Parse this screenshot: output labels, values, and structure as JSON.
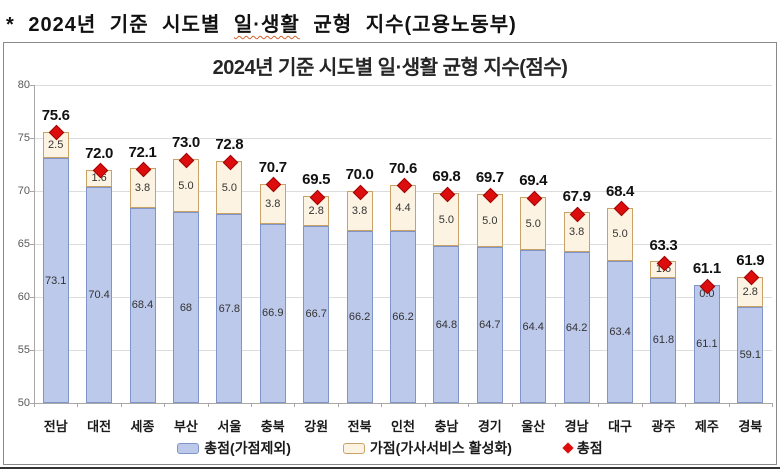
{
  "page_title": {
    "prefix": "* 2024년 기준 시도별 ",
    "highlight": "일·생활",
    "suffix": " 균형 지수(고용노동부)"
  },
  "chart": {
    "title": "2024년 기준 시도별 일·생활 균형 지수(점수)",
    "legend": [
      {
        "label": "총점(가점제외)"
      },
      {
        "label": "가점(가사서비스 활성화)"
      },
      {
        "label": "총점"
      }
    ],
    "colors": {
      "base_fill": "#bcc9ea",
      "base_border": "#8095c7",
      "bonus_fill": "#fdf3e2",
      "bonus_border": "#c9a268",
      "marker": "#dd0d0d",
      "marker_border": "#9c0606",
      "grid": "#dcdcdc",
      "axis": "#a8a8a8"
    }
  },
  "chart_data": {
    "type": "bar",
    "stacked": true,
    "title": "2024년 기준 시도별 일·생활 균형 지수(점수)",
    "categories": [
      "전남",
      "대전",
      "세종",
      "부산",
      "서울",
      "충북",
      "강원",
      "전북",
      "인천",
      "충남",
      "경기",
      "울산",
      "경남",
      "대구",
      "광주",
      "제주",
      "경북"
    ],
    "series": [
      {
        "name": "총점(가점제외)",
        "values": [
          73.1,
          70.4,
          68.4,
          68,
          67.8,
          66.9,
          66.7,
          66.2,
          66.2,
          64.8,
          64.7,
          64.4,
          64.2,
          63.4,
          61.8,
          61.1,
          59.1
        ],
        "labels": [
          "73.1",
          "70.4",
          "68.4",
          "68",
          "67.8",
          "66.9",
          "66.7",
          "66.2",
          "66.2",
          "64.8",
          "64.7",
          "64.4",
          "64.2",
          "63.4",
          "61.8",
          "61.1",
          "59.1"
        ]
      },
      {
        "name": "가점(가사서비스 활성화)",
        "values": [
          2.5,
          1.6,
          3.8,
          5.0,
          5.0,
          3.8,
          2.8,
          3.8,
          4.4,
          5.0,
          5.0,
          5.0,
          3.8,
          5.0,
          1.6,
          0.0,
          2.8
        ],
        "labels": [
          "2.5",
          "1.6",
          "3.8",
          "5.0",
          "5.0",
          "3.8",
          "2.8",
          "3.8",
          "4.4",
          "5.0",
          "5.0",
          "5.0",
          "3.8",
          "5.0",
          "1.6",
          "0.0",
          "2.8"
        ]
      }
    ],
    "totals": {
      "name": "총점",
      "values": [
        75.6,
        72.0,
        72.1,
        73.0,
        72.8,
        70.7,
        69.5,
        70.0,
        70.6,
        69.8,
        69.7,
        69.4,
        67.9,
        68.4,
        63.3,
        61.1,
        61.9
      ],
      "labels": [
        "75.6",
        "72.0",
        "72.1",
        "73.0",
        "72.8",
        "70.7",
        "69.5",
        "70.0",
        "70.6",
        "69.8",
        "69.7",
        "69.4",
        "67.9",
        "68.4",
        "63.3",
        "61.1",
        "61.9"
      ]
    },
    "ylim": [
      50,
      80
    ],
    "yticks": [
      50,
      55,
      60,
      65,
      70,
      75,
      80
    ],
    "grid": true,
    "legend_position": "bottom"
  }
}
